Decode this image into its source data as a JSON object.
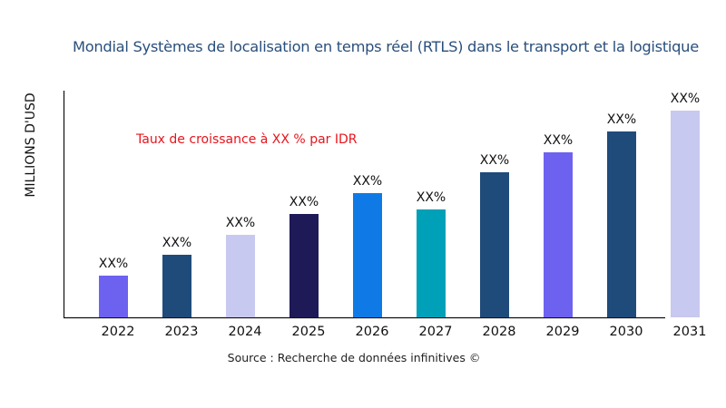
{
  "chart_data": {
    "type": "bar",
    "title": "Mondial Systèmes de localisation en temps réel (RTLS) dans le transport et la logistique",
    "ylabel": "MILLIONS D'USD",
    "xlabel": "",
    "categories": [
      "2022",
      "2023",
      "2024",
      "2025",
      "2026",
      "2027",
      "2028",
      "2029",
      "2030",
      "2031"
    ],
    "values": [
      46,
      69,
      91,
      114,
      137,
      119,
      160,
      182,
      205,
      228
    ],
    "data_labels": [
      "XX%",
      "XX%",
      "XX%",
      "XX%",
      "XX%",
      "XX%",
      "XX%",
      "XX%",
      "XX%",
      "XX%"
    ],
    "colors": [
      "#6d62f0",
      "#1f4b7b",
      "#c8c9f0",
      "#1e1a58",
      "#0f7ae6",
      "#00a1b8",
      "#1f4b7b",
      "#6d62f0",
      "#1f4b7b",
      "#c8c9f0"
    ],
    "annotation": "Taux de croissance à XX % par IDR",
    "source": "Source : Recherche de données infinitives ©",
    "ylim": [
      0,
      250
    ],
    "grid": false,
    "legend": "none"
  }
}
